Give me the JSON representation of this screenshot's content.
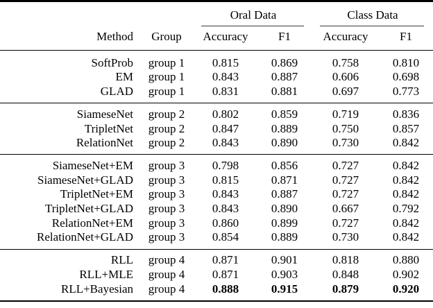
{
  "colors": {
    "text": "#000000",
    "bg": "#ffffff",
    "rule": "#000000",
    "cmidrule": "#3a3a3a"
  },
  "table": {
    "spanners": [
      "Oral Data",
      "Class Data"
    ],
    "headers": {
      "method": "Method",
      "group": "Group",
      "accuracy": "Accuracy",
      "f1": "F1"
    },
    "rows": [
      {
        "method": "SoftProb",
        "group": "group 1",
        "values": [
          "0.815",
          "0.869",
          "0.758",
          "0.810"
        ],
        "bold": false
      },
      {
        "method": "EM",
        "group": "group 1",
        "values": [
          "0.843",
          "0.887",
          "0.606",
          "0.698"
        ],
        "bold": false
      },
      {
        "method": "GLAD",
        "group": "group 1",
        "values": [
          "0.831",
          "0.881",
          "0.697",
          "0.773"
        ],
        "bold": false
      },
      {
        "method": "SiameseNet",
        "group": "group 2",
        "values": [
          "0.802",
          "0.859",
          "0.719",
          "0.836"
        ],
        "bold": false
      },
      {
        "method": "TripletNet",
        "group": "group 2",
        "values": [
          "0.847",
          "0.889",
          "0.750",
          "0.857"
        ],
        "bold": false
      },
      {
        "method": "RelationNet",
        "group": "group 2",
        "values": [
          "0.843",
          "0.890",
          "0.730",
          "0.842"
        ],
        "bold": false
      },
      {
        "method": "SiameseNet+EM",
        "group": "group 3",
        "values": [
          "0.798",
          "0.856",
          "0.727",
          "0.842"
        ],
        "bold": false
      },
      {
        "method": "SiameseNet+GLAD",
        "group": "group 3",
        "values": [
          "0.815",
          "0.871",
          "0.727",
          "0.842"
        ],
        "bold": false
      },
      {
        "method": "TripletNet+EM",
        "group": "group 3",
        "values": [
          "0.843",
          "0.887",
          "0.727",
          "0.842"
        ],
        "bold": false
      },
      {
        "method": "TripletNet+GLAD",
        "group": "group 3",
        "values": [
          "0.843",
          "0.890",
          "0.667",
          "0.792"
        ],
        "bold": false
      },
      {
        "method": "RelationNet+EM",
        "group": "group 3",
        "values": [
          "0.860",
          "0.899",
          "0.727",
          "0.842"
        ],
        "bold": false
      },
      {
        "method": "RelationNet+GLAD",
        "group": "group 3",
        "values": [
          "0.854",
          "0.889",
          "0.730",
          "0.842"
        ],
        "bold": false
      },
      {
        "method": "RLL",
        "group": "group 4",
        "values": [
          "0.871",
          "0.901",
          "0.818",
          "0.880"
        ],
        "bold": false
      },
      {
        "method": "RLL+MLE",
        "group": "group 4",
        "values": [
          "0.871",
          "0.903",
          "0.848",
          "0.902"
        ],
        "bold": false
      },
      {
        "method": "RLL+Bayesian",
        "group": "group 4",
        "values": [
          "0.888",
          "0.915",
          "0.879",
          "0.920"
        ],
        "bold": true
      }
    ]
  }
}
